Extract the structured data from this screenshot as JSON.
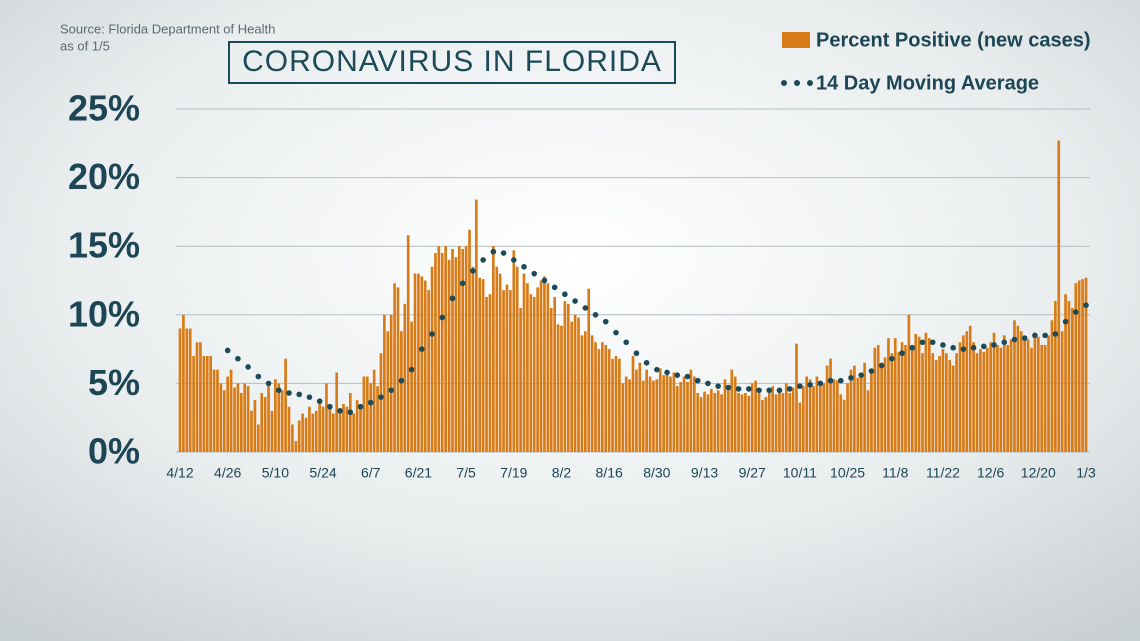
{
  "chart_data": {
    "type": "bar",
    "source": "Source: Florida Department of Health",
    "as_of": "as of 1/5",
    "title": "CORONAVIRUS IN FLORIDA",
    "categories": [
      "4/12",
      null,
      null,
      null,
      null,
      null,
      null,
      null,
      null,
      null,
      null,
      null,
      null,
      null,
      "4/26",
      null,
      null,
      null,
      null,
      null,
      null,
      null,
      null,
      null,
      null,
      null,
      null,
      null,
      "5/10",
      null,
      null,
      null,
      null,
      null,
      null,
      null,
      null,
      null,
      null,
      null,
      null,
      null,
      "5/24",
      null,
      null,
      null,
      null,
      null,
      null,
      null,
      null,
      null,
      null,
      null,
      null,
      null,
      "6/7",
      null,
      null,
      null,
      null,
      null,
      null,
      null,
      null,
      null,
      null,
      null,
      null,
      null,
      "6/21",
      null,
      null,
      null,
      null,
      null,
      null,
      null,
      null,
      null,
      null,
      null,
      null,
      null,
      "7/5",
      null,
      null,
      null,
      null,
      null,
      null,
      null,
      null,
      null,
      null,
      null,
      null,
      null,
      "7/19",
      null,
      null,
      null,
      null,
      null,
      null,
      null,
      null,
      null,
      null,
      null,
      null,
      null,
      "8/2",
      null,
      null,
      null,
      null,
      null,
      null,
      null,
      null,
      null,
      null,
      null,
      null,
      null,
      "8/16",
      null,
      null,
      null,
      null,
      null,
      null,
      null,
      null,
      null,
      null,
      null,
      null,
      null,
      "8/30",
      null,
      null,
      null,
      null,
      null,
      null,
      null,
      null,
      null,
      null,
      null,
      null,
      null,
      "9/13",
      null,
      null,
      null,
      null,
      null,
      null,
      null,
      null,
      null,
      null,
      null,
      null,
      null,
      "9/27",
      null,
      null,
      null,
      null,
      null,
      null,
      null,
      null,
      null,
      null,
      null,
      null,
      null,
      "10/11",
      null,
      null,
      null,
      null,
      null,
      null,
      null,
      null,
      null,
      null,
      null,
      null,
      null,
      "10/25",
      null,
      null,
      null,
      null,
      null,
      null,
      null,
      null,
      null,
      null,
      null,
      null,
      null,
      "11/8",
      null,
      null,
      null,
      null,
      null,
      null,
      null,
      null,
      null,
      null,
      null,
      null,
      null,
      "11/22",
      null,
      null,
      null,
      null,
      null,
      null,
      null,
      null,
      null,
      null,
      null,
      null,
      null,
      "12/6",
      null,
      null,
      null,
      null,
      null,
      null,
      null,
      null,
      null,
      null,
      null,
      null,
      null,
      "12/20",
      null,
      null,
      null,
      null,
      null,
      null,
      null,
      null,
      null,
      null,
      null,
      null,
      null,
      "1/3"
    ],
    "series": [
      {
        "name": "Percent Positive (new cases)",
        "type": "bar",
        "color": "#d87a15",
        "values": [
          9,
          10,
          9,
          9,
          7,
          8,
          8,
          7,
          7,
          7,
          6,
          6,
          5,
          4.5,
          5.5,
          6,
          4.7,
          5,
          4.3,
          5,
          4.8,
          3,
          3.8,
          2,
          4.3,
          4,
          4.8,
          3,
          5.3,
          5,
          4.5,
          6.8,
          3.3,
          2,
          0.8,
          2.3,
          2.8,
          2.5,
          3.3,
          2.8,
          3,
          3.5,
          3.3,
          5,
          3.5,
          2.8,
          5.8,
          3,
          3.5,
          3.3,
          4.3,
          2.8,
          3.8,
          3.5,
          5.5,
          5.5,
          5,
          6,
          4.8,
          7.2,
          10,
          8.8,
          10,
          12.3,
          12,
          8.8,
          10.8,
          15.8,
          9.5,
          13,
          13,
          12.8,
          12.5,
          11.8,
          13.5,
          14.5,
          15,
          14.5,
          15,
          14,
          14.8,
          14.2,
          15,
          14.8,
          15,
          16.2,
          13.5,
          18.4,
          12.7,
          12.6,
          11.3,
          11.5,
          15,
          13.5,
          13,
          11.8,
          12.2,
          11.8,
          14.7,
          13.5,
          10.5,
          13,
          12.3,
          11.5,
          11.3,
          12,
          12.5,
          12.8,
          12.3,
          10.5,
          11.3,
          9.3,
          9.2,
          11,
          10.8,
          9.5,
          10,
          9.8,
          8.5,
          8.8,
          11.9,
          8.5,
          8,
          7.5,
          8,
          7.8,
          7.5,
          6.8,
          7,
          6.8,
          5,
          5.5,
          5.3,
          7,
          6,
          6.5,
          5.2,
          6,
          5.5,
          5.2,
          5.3,
          6.1,
          5.6,
          5.8,
          5.5,
          5.8,
          4.8,
          5.1,
          5.5,
          5.1,
          6,
          5.5,
          4.3,
          4,
          4.4,
          4.2,
          4.6,
          4.3,
          4.5,
          4.2,
          5.3,
          4.8,
          6,
          5.5,
          4.3,
          4.2,
          4.3,
          4.1,
          5,
          5.2,
          4.3,
          3.8,
          4,
          4.3,
          4.8,
          4.2,
          4.6,
          4.3,
          5,
          4.3,
          4.7,
          7.9,
          3.6,
          4.8,
          5.5,
          5.3,
          4.8,
          5.5,
          4.8,
          5,
          6.3,
          6.8,
          5.3,
          5.2,
          4.2,
          3.8,
          5,
          6,
          6.3,
          5.4,
          5.8,
          6.5,
          4.5,
          6,
          7.6,
          7.8,
          6.5,
          6.9,
          8.3,
          7.2,
          8.3,
          7.3,
          8,
          7.8,
          10,
          7.6,
          8.6,
          8.4,
          7.2,
          8.7,
          8.3,
          7.2,
          6.7,
          7,
          7.5,
          7.2,
          6.7,
          6.3,
          7.2,
          8,
          8.5,
          8.8,
          9.2,
          8,
          7.2,
          7.5,
          7.3,
          7.6,
          8,
          8.7,
          7.8,
          7.6,
          8.5,
          7.8,
          8.2,
          9.6,
          9.2,
          8.8,
          8.5,
          8.2,
          7.6,
          8.7,
          8.4,
          7.8,
          7.8,
          8.5,
          9.6,
          11,
          22.7,
          8.8,
          11.5,
          11,
          10.5,
          12.3,
          12.5,
          12.6,
          12.7
        ]
      },
      {
        "name": "14 Day Moving Average",
        "type": "line",
        "line_style": "dotted",
        "color": "#1c4a58",
        "values": [
          null,
          null,
          null,
          null,
          null,
          null,
          null,
          null,
          null,
          null,
          null,
          null,
          null,
          null,
          7.4,
          null,
          null,
          6.8,
          null,
          null,
          6.2,
          null,
          null,
          5.5,
          null,
          null,
          5.0,
          null,
          null,
          4.5,
          null,
          null,
          4.3,
          null,
          null,
          4.2,
          null,
          null,
          4.0,
          null,
          null,
          3.7,
          null,
          null,
          3.3,
          null,
          null,
          3.0,
          null,
          null,
          2.9,
          null,
          null,
          3.3,
          null,
          null,
          3.6,
          null,
          null,
          4.0,
          null,
          null,
          4.5,
          null,
          null,
          5.2,
          null,
          null,
          6.0,
          null,
          null,
          7.5,
          null,
          null,
          8.6,
          null,
          null,
          9.8,
          null,
          null,
          11.2,
          null,
          null,
          12.3,
          null,
          null,
          13.2,
          null,
          null,
          14.0,
          null,
          null,
          14.6,
          null,
          null,
          14.5,
          null,
          null,
          14.0,
          null,
          null,
          13.5,
          null,
          null,
          13.0,
          null,
          null,
          12.5,
          null,
          null,
          12.0,
          null,
          null,
          11.5,
          null,
          null,
          11.0,
          null,
          null,
          10.5,
          null,
          null,
          10.0,
          null,
          null,
          9.5,
          null,
          null,
          8.7,
          null,
          null,
          8.0,
          null,
          null,
          7.2,
          null,
          null,
          6.5,
          null,
          null,
          6.0,
          null,
          null,
          5.8,
          null,
          null,
          5.6,
          null,
          null,
          5.5,
          null,
          null,
          5.2,
          null,
          null,
          5.0,
          null,
          null,
          4.8,
          null,
          null,
          4.7,
          null,
          null,
          4.6,
          null,
          null,
          4.6,
          null,
          null,
          4.5,
          null,
          null,
          4.5,
          null,
          null,
          4.5,
          null,
          null,
          4.6,
          null,
          null,
          4.8,
          null,
          null,
          4.9,
          null,
          null,
          5.0,
          null,
          null,
          5.2,
          null,
          null,
          5.2,
          null,
          null,
          5.4,
          null,
          null,
          5.6,
          null,
          null,
          5.9,
          null,
          null,
          6.3,
          null,
          null,
          6.8,
          null,
          null,
          7.2,
          null,
          null,
          7.6,
          null,
          null,
          8.0,
          null,
          null,
          8.0,
          null,
          null,
          7.8,
          null,
          null,
          7.6,
          null,
          null,
          7.5,
          null,
          null,
          7.6,
          null,
          null,
          7.7,
          null,
          null,
          7.8,
          null,
          null,
          8.0,
          null,
          null,
          8.2,
          null,
          null,
          8.3,
          null,
          null,
          8.5,
          null,
          null,
          8.5,
          null,
          null,
          8.6,
          null,
          null,
          9.5,
          null,
          null,
          10.2,
          null,
          null,
          10.7
        ]
      }
    ],
    "ylim": [
      0,
      25
    ],
    "yticks": [
      {
        "value": 0,
        "label": "0%"
      },
      {
        "value": 5,
        "label": "5%"
      },
      {
        "value": 10,
        "label": "10%"
      },
      {
        "value": 15,
        "label": "15%"
      },
      {
        "value": 20,
        "label": "20%"
      },
      {
        "value": 25,
        "label": "25%"
      }
    ],
    "grid": true,
    "legend": "top-right"
  }
}
